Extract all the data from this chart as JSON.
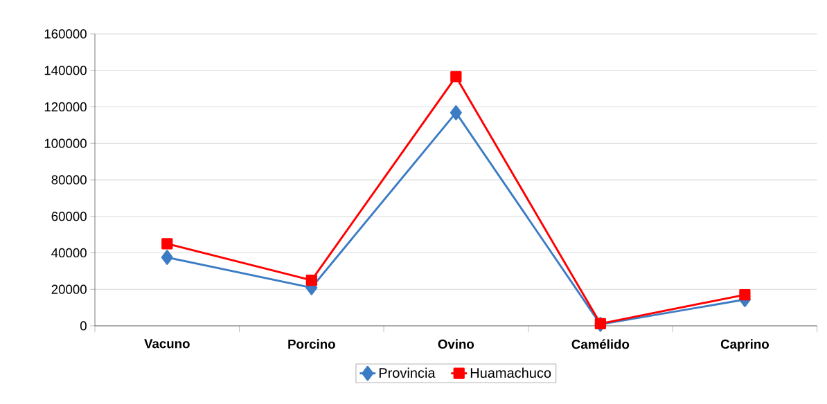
{
  "chart_data": {
    "type": "line",
    "categories": [
      "Vacuno",
      "Porcino",
      "Ovino",
      "Camélido",
      "Caprino"
    ],
    "series": [
      {
        "name": "Provincia",
        "color": "#3c7cc4",
        "marker": "diamond",
        "values": [
          37500,
          20900,
          116800,
          800,
          14400
        ]
      },
      {
        "name": "Huamachuco",
        "color": "#ff0000",
        "marker": "square",
        "values": [
          45000,
          25000,
          136500,
          1200,
          17000
        ]
      }
    ],
    "ylim": [
      0,
      160000
    ],
    "yticks": [
      0,
      20000,
      40000,
      60000,
      80000,
      100000,
      120000,
      140000,
      160000
    ],
    "grid": "y",
    "legend": "bottom",
    "line_style": "solid"
  }
}
